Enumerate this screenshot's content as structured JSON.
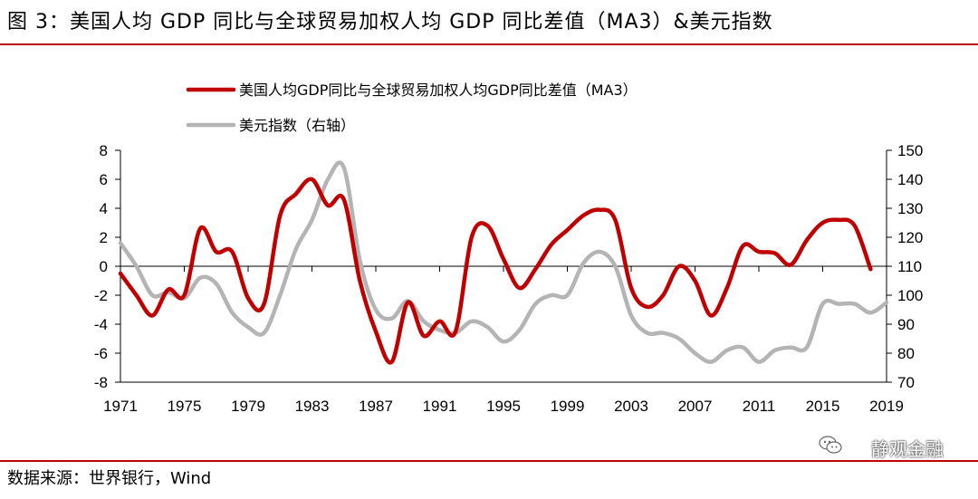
{
  "figure": {
    "title": "图 3：美国人均 GDP 同比与全球贸易加权人均 GDP 同比差值（MA3）&美元指数",
    "source": "数据来源：世界银行，Wind",
    "watermark": "静观金融"
  },
  "colors": {
    "series_red": "#c00000",
    "series_gray": "#b4b4b4",
    "rule": "#c00000"
  },
  "chart_data": {
    "type": "line",
    "xlabel": "",
    "ylabel": "",
    "x_ticks": [
      "1971",
      "1975",
      "1979",
      "1983",
      "1987",
      "1991",
      "1995",
      "1999",
      "2003",
      "2007",
      "2011",
      "2015",
      "2019"
    ],
    "xlim": [
      1971,
      2019
    ],
    "y_left": {
      "lim": [
        -8,
        8
      ],
      "ticks": [
        "8",
        "6",
        "4",
        "2",
        "0",
        "-2",
        "-4",
        "-6",
        "-8"
      ]
    },
    "y_right": {
      "lim": [
        70,
        150
      ],
      "ticks": [
        "150",
        "140",
        "130",
        "120",
        "110",
        "100",
        "90",
        "80",
        "70"
      ]
    },
    "legend_position": "top-center",
    "series": [
      {
        "name": "美国人均GDP同比与全球贸易加权人均GDP同比差值（MA3）",
        "axis": "left",
        "x": [
          1971,
          1972,
          1973,
          1974,
          1975,
          1976,
          1977,
          1978,
          1979,
          1980,
          1981,
          1982,
          1983,
          1984,
          1985,
          1986,
          1987,
          1988,
          1989,
          1990,
          1991,
          1992,
          1993,
          1994,
          1995,
          1996,
          1997,
          1998,
          1999,
          2000,
          2001,
          2002,
          2003,
          2004,
          2005,
          2006,
          2007,
          2008,
          2009,
          2010,
          2011,
          2012,
          2013,
          2014,
          2015,
          2016,
          2017,
          2018
        ],
        "values": [
          -0.5,
          -2.0,
          -3.4,
          -1.6,
          -2.0,
          2.6,
          1.0,
          1.0,
          -2.2,
          -2.6,
          3.5,
          5.0,
          6.0,
          4.2,
          4.6,
          -1.0,
          -4.5,
          -6.6,
          -2.5,
          -4.8,
          -3.8,
          -4.5,
          2.0,
          2.8,
          0.5,
          -1.5,
          -0.2,
          1.5,
          2.5,
          3.5,
          3.9,
          3.2,
          -1.5,
          -2.8,
          -2.0,
          0.0,
          -1.0,
          -3.4,
          -1.5,
          1.4,
          1.0,
          0.9,
          0.1,
          1.8,
          3.0,
          3.2,
          2.8,
          -0.2
        ]
      },
      {
        "name": "美元指数（右轴）",
        "axis": "right",
        "x": [
          1971,
          1972,
          1973,
          1974,
          1975,
          1976,
          1977,
          1978,
          1979,
          1980,
          1981,
          1982,
          1983,
          1984,
          1985,
          1986,
          1987,
          1988,
          1989,
          1990,
          1991,
          1992,
          1993,
          1994,
          1995,
          1996,
          1997,
          1998,
          1999,
          2000,
          2001,
          2002,
          2003,
          2004,
          2005,
          2006,
          2007,
          2008,
          2009,
          2010,
          2011,
          2012,
          2013,
          2014,
          2015,
          2016,
          2017,
          2018,
          2019
        ],
        "values": [
          118,
          110,
          100,
          101,
          99,
          106,
          104,
          94,
          89,
          87,
          100,
          116,
          126,
          140,
          144,
          112,
          95,
          92,
          98,
          91,
          88,
          87,
          91,
          89,
          84,
          88,
          97,
          100,
          100,
          111,
          115,
          110,
          93,
          87,
          87,
          85,
          80,
          77,
          81,
          82,
          77,
          81,
          82,
          82,
          97,
          97,
          97,
          94,
          97.5
        ]
      }
    ]
  }
}
